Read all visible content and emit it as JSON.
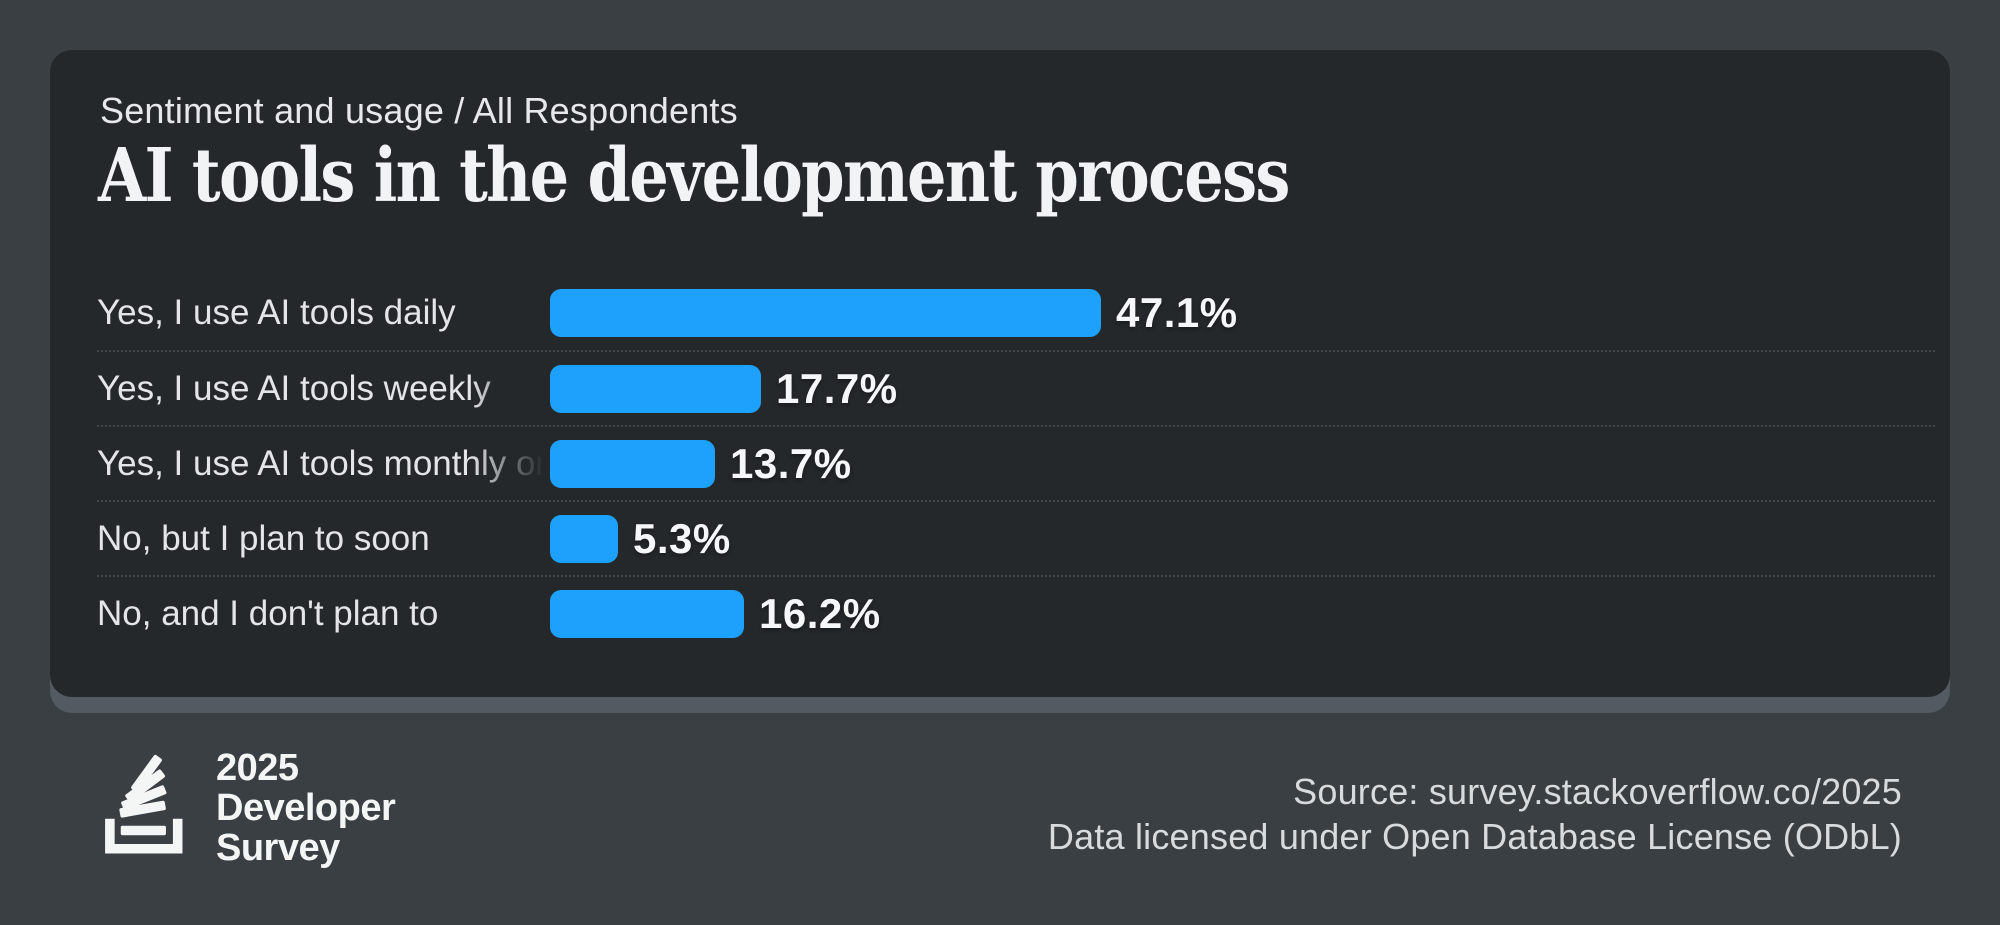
{
  "header": {
    "breadcrumb": {
      "section": "Sentiment and usage",
      "separator": " / ",
      "scope": "All Respondents"
    },
    "title": "AI tools in the development process"
  },
  "chart_data": {
    "type": "bar",
    "orientation": "horizontal",
    "title": "AI tools in the development process",
    "unit": "%",
    "categories": [
      "Yes, I use AI tools daily",
      "Yes, I use AI tools weekly",
      "Yes, I use AI tools monthly or infrequently",
      "No, but I plan to soon",
      "No, and I don't plan to"
    ],
    "values": [
      47.1,
      17.7,
      13.7,
      5.3,
      16.2
    ],
    "value_labels": [
      "47.1%",
      "17.7%",
      "13.7%",
      "5.3%",
      "16.2%"
    ],
    "bar_color": "#1ea1fc",
    "xlim": [
      0,
      100
    ],
    "grid": false,
    "legend": false,
    "notes": "third category label is clipped with a fade-out at the label column edge"
  },
  "footer": {
    "logo": {
      "icon": "stackoverflow-logo-icon",
      "line1": "2025",
      "line2": "Developer",
      "line3": "Survey"
    },
    "source_line": "Source: survey.stackoverflow.co/2025",
    "license_line": "Data licensed under Open Database License (ODbL)"
  },
  "colors": {
    "page_background": "#3a3f43",
    "card_background": "#24282b",
    "card_bottom_lip": "#535a61",
    "accent_blue": "#1ea1fc",
    "text_primary": "#f2f3f4",
    "text_secondary": "#e3e5e7",
    "footer_text": "#d8dbdd"
  }
}
